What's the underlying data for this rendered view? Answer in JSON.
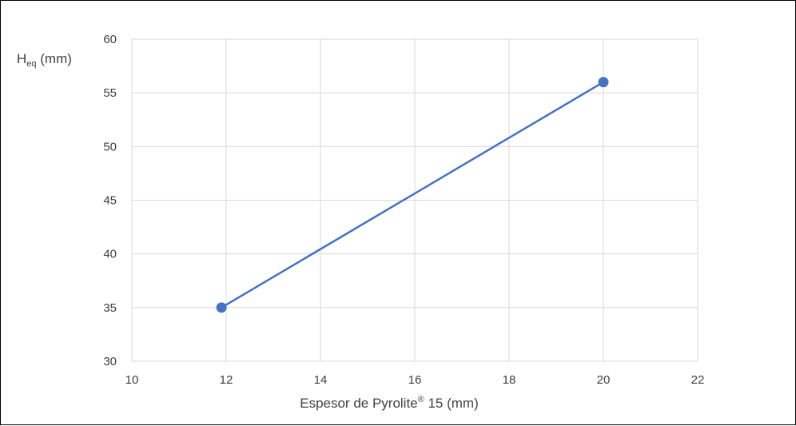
{
  "chart_data": {
    "type": "line",
    "xlabel": {
      "main": "Espesor de Pyrolite",
      "sup": "®",
      "rest": " 15 (mm)"
    },
    "ylabel": {
      "main": "H",
      "sub": "eq",
      "rest": " (mm)"
    },
    "xlim": [
      10,
      22
    ],
    "ylim": [
      30,
      60
    ],
    "xticks": [
      10,
      12,
      14,
      16,
      18,
      20,
      22
    ],
    "yticks": [
      30,
      35,
      40,
      45,
      50,
      55,
      60
    ],
    "grid": true,
    "series": [
      {
        "color": "#4472C4",
        "points": [
          {
            "x": 11.9,
            "y": 35
          },
          {
            "x": 20,
            "y": 56
          }
        ]
      }
    ]
  }
}
